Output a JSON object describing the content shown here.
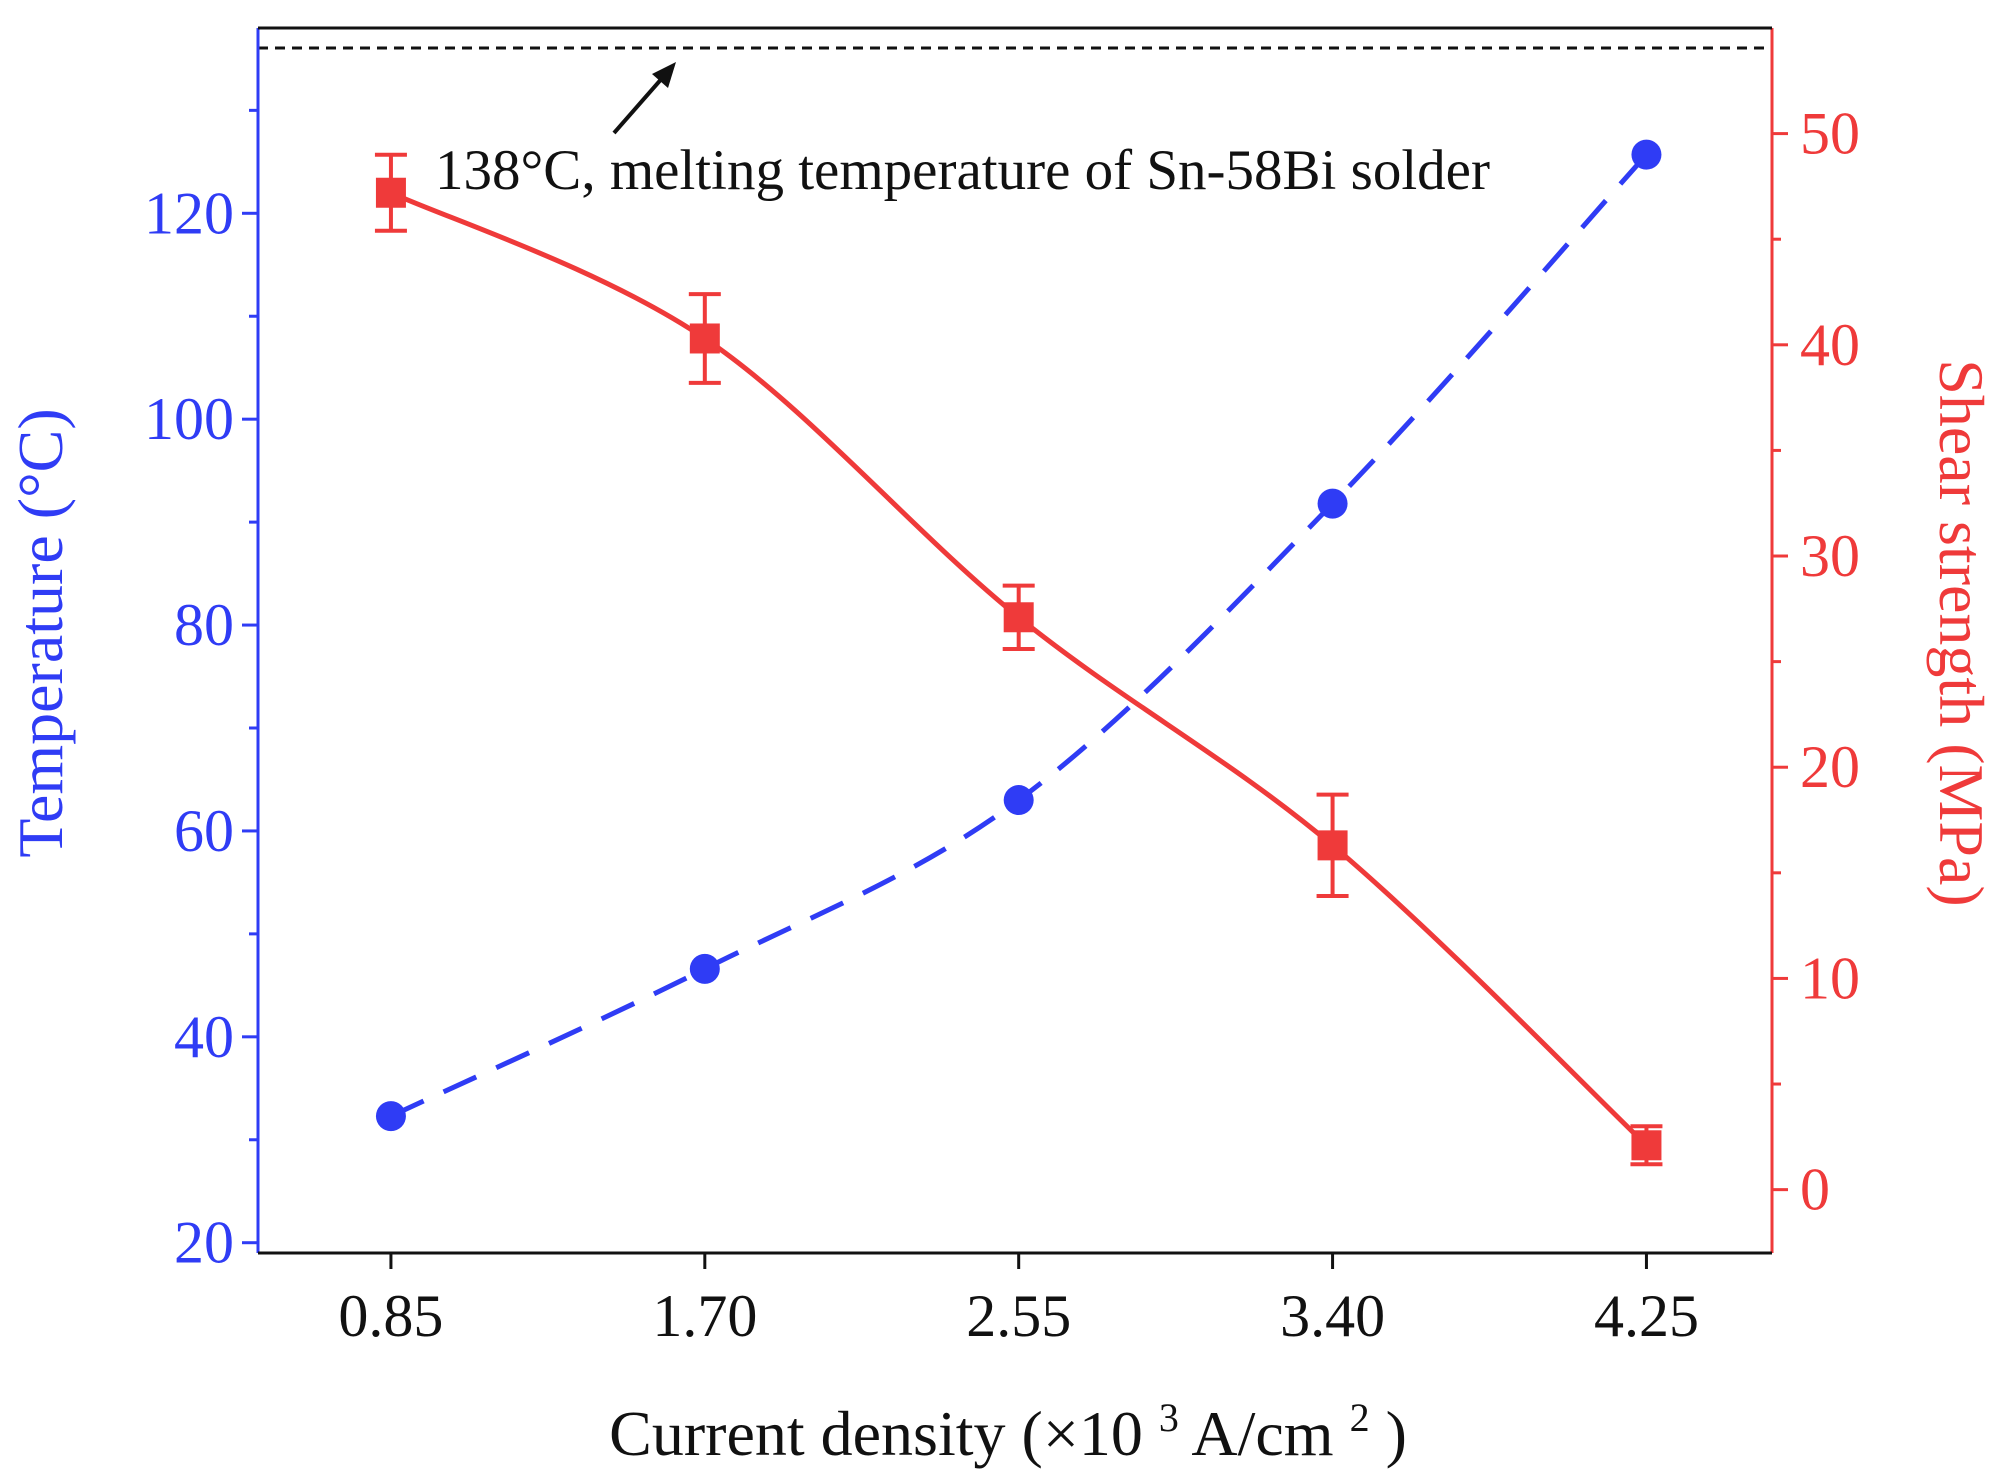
{
  "chart_data": {
    "type": "line",
    "title": "",
    "x": [
      "0.85",
      "1.70",
      "2.55",
      "3.40",
      "4.25"
    ],
    "x_values": [
      0.85,
      1.7,
      2.55,
      3.4,
      4.25
    ],
    "xlabel": {
      "prefix": "Current density (×10",
      "sup1": "3",
      "middle": " A/cm",
      "sup2": "2",
      "suffix": ")"
    },
    "ylabel_left": "Temperature (°C)",
    "ylabel_right": "Shear strength (MPa)",
    "ylim_left": [
      19,
      138
    ],
    "ylim_right": [
      -3,
      55
    ],
    "xlim": [
      0.49,
      4.59
    ],
    "yticks_left": [
      20,
      40,
      60,
      80,
      100,
      120
    ],
    "yticks_right": [
      0,
      10,
      20,
      30,
      40,
      50
    ],
    "series": [
      {
        "name": "Temperature",
        "axis": "left",
        "marker": "circle",
        "line": "dashed",
        "color": "#2f3cf5",
        "values": [
          32.3,
          46.6,
          63.0,
          91.8,
          125.7
        ]
      },
      {
        "name": "Shear strength",
        "axis": "right",
        "marker": "square",
        "line": "solid",
        "color": "#ef3a3a",
        "values": [
          47.2,
          40.3,
          27.1,
          16.3,
          2.1
        ],
        "errors": [
          1.8,
          2.1,
          1.5,
          2.4,
          0.9
        ]
      }
    ],
    "reference_line": {
      "value": 138,
      "axis": "left",
      "style": "dashed",
      "color": "#111111"
    },
    "annotation": "138°C, melting temperature of Sn-58Bi solder",
    "colors": {
      "left_axis": "#2f3cf5",
      "right_axis": "#ef3a3a",
      "frame": "#111111"
    }
  }
}
